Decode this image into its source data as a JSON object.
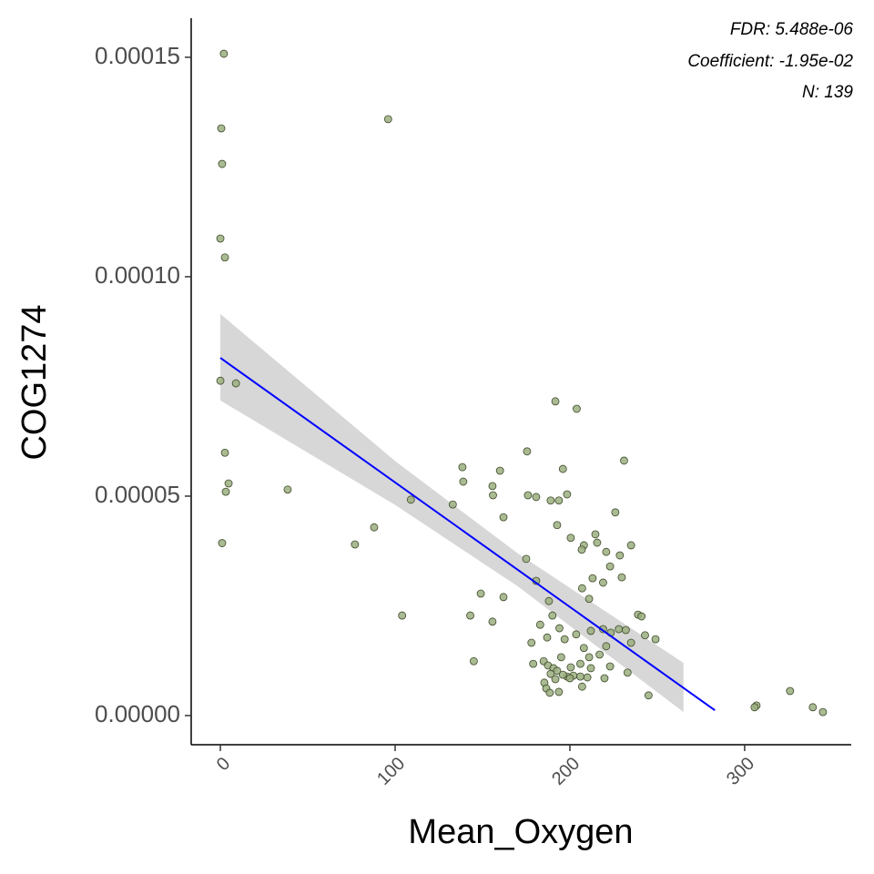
{
  "chart_data": {
    "type": "scatter",
    "x_label": "Mean_Oxygen",
    "y_label": "COG1274",
    "annotations": [
      "FDR: 5.488e-06",
      "Coefficient: -1.95e-02",
      "N: 139"
    ],
    "xlim": [
      -16.7,
      361
    ],
    "ylim": [
      -6.64e-06,
      0.0001589
    ],
    "xticks": [
      0,
      100,
      200,
      300
    ],
    "yticks": [
      {
        "value": 0,
        "label": "0.00000"
      },
      {
        "value": 5e-05,
        "label": "0.00005"
      },
      {
        "value": 0.0001,
        "label": "0.00010"
      },
      {
        "value": 0.00015,
        "label": "0.00015"
      }
    ],
    "point_color": "#9bae7f",
    "point_edge": "#3d4a2a",
    "x": [
      2,
      0.5,
      1,
      0,
      2.6,
      96,
      0,
      8.9,
      2.6,
      4.7,
      3.1,
      1,
      38.5,
      77,
      88,
      104,
      109,
      133,
      138.5,
      139,
      155.7,
      156,
      160,
      162,
      149,
      143,
      155.7,
      145,
      162,
      175,
      175.5,
      176,
      180.7,
      191.7,
      203.9,
      196,
      198.4,
      189,
      192.7,
      193.7,
      231,
      226,
      200.5,
      214.6,
      215.6,
      208,
      235,
      220.8,
      228.6,
      223,
      206.8,
      213,
      219,
      229.7,
      180.7,
      207,
      211,
      188,
      190,
      183,
      194,
      187,
      197,
      203.6,
      212,
      219,
      223.4,
      228,
      232,
      239,
      241,
      243,
      249,
      235,
      220.8,
      208,
      178,
      217,
      211,
      195,
      185,
      179,
      187.5,
      190.6,
      192.7,
      200.5,
      206,
      212,
      202,
      198.4,
      196,
      200,
      189,
      185.4,
      191.7,
      210,
      219.8,
      233,
      223,
      186.5,
      188.5,
      193.7,
      207,
      206,
      245,
      306.8,
      305.7,
      326,
      339,
      344.8
    ],
    "values": [
      0.0001508,
      0.0001338,
      0.0001257,
      0.0001087,
      0.0001044,
      0.0001359,
      7.63e-05,
      7.57e-05,
      5.99e-05,
      5.29e-05,
      5.1e-05,
      3.93e-05,
      5.15e-05,
      3.9e-05,
      4.29e-05,
      2.28e-05,
      4.92e-05,
      4.81e-05,
      5.66e-05,
      5.33e-05,
      5.23e-05,
      5.02e-05,
      5.58e-05,
      4.52e-05,
      2.78e-05,
      2.28e-05,
      2.14e-05,
      1.24e-05,
      2.7e-05,
      3.57e-05,
      6.02e-05,
      5.02e-05,
      4.98e-05,
      7.16e-05,
      6.99e-05,
      5.62e-05,
      5.04e-05,
      4.9e-05,
      4.34e-05,
      4.9e-05,
      5.81e-05,
      4.63e-05,
      4.05e-05,
      4.13e-05,
      3.94e-05,
      3.88e-05,
      3.88e-05,
      3.73e-05,
      3.65e-05,
      3.4e-05,
      3.78e-05,
      3.13e-05,
      3.03e-05,
      3.15e-05,
      3.07e-05,
      2.9e-05,
      2.66e-05,
      2.61e-05,
      2.28e-05,
      2.07e-05,
      1.99e-05,
      1.78e-05,
      1.74e-05,
      1.85e-05,
      1.93e-05,
      1.97e-05,
      1.89e-05,
      1.97e-05,
      1.95e-05,
      2.3e-05,
      2.26e-05,
      1.83e-05,
      1.74e-05,
      1.66e-05,
      1.58e-05,
      1.54e-05,
      1.66e-05,
      1.39e-05,
      1.33e-05,
      1.33e-05,
      1.24e-05,
      1.18e-05,
      1.14e-05,
      1.08e-05,
      1.02e-05,
      1.1e-05,
      1.18e-05,
      1.08e-05,
      9.1e-06,
      8.9e-06,
      9.3e-06,
      8.5e-06,
      9.5e-06,
      7.5e-06,
      8.3e-06,
      8.7e-06,
      8.5e-06,
      9.8e-06,
      1.12e-05,
      6.2e-06,
      5.2e-06,
      5.4e-06,
      6.6e-06,
      8.9e-06,
      4.6e-06,
      2.3e-06,
      1.9e-06,
      5.6e-06,
      1.9e-06,
      8e-07
    ],
    "fit": {
      "color": "#0000ff",
      "x": [
        0,
        283
      ],
      "y": [
        8.15e-05,
        1.2e-06
      ]
    },
    "band": {
      "color": "#d3d3d3",
      "x": [
        0,
        100,
        170,
        265
      ],
      "upper": [
        9.15e-05,
        5.8e-05,
        3.7e-05,
        1.2e-05
      ],
      "lower": [
        7.18e-05,
        4.8e-05,
        2.95e-05,
        8e-07
      ]
    }
  }
}
